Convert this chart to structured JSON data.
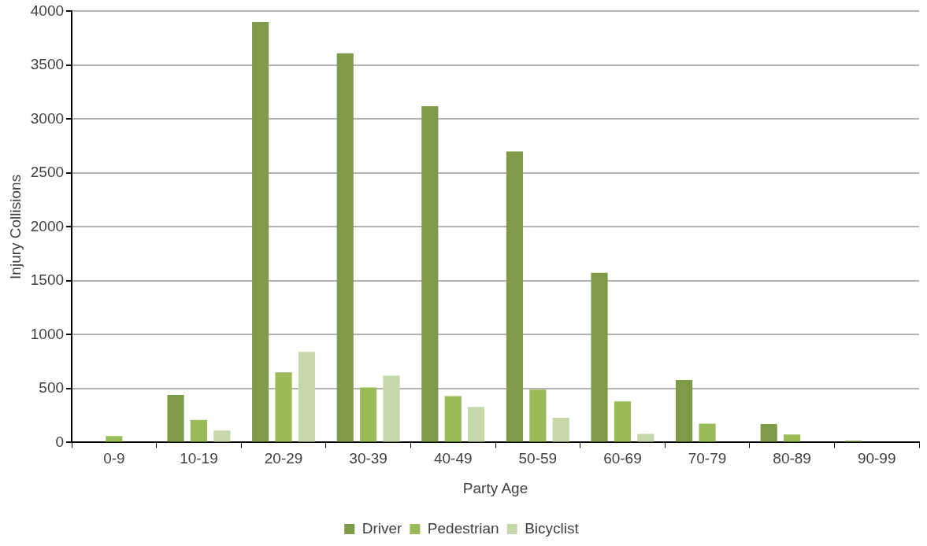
{
  "chart_data": {
    "type": "bar",
    "xlabel": "Party Age",
    "ylabel": "Injury Collisions",
    "categories": [
      "0-9",
      "10-19",
      "20-29",
      "30-39",
      "40-49",
      "50-59",
      "60-69",
      "70-79",
      "80-89",
      "90-99"
    ],
    "series": [
      {
        "name": "Driver",
        "color": "#7f9a48",
        "values": [
          0,
          440,
          3900,
          3610,
          3120,
          2700,
          1575,
          580,
          170,
          15
        ]
      },
      {
        "name": "Pedestrian",
        "color": "#9bbb59",
        "values": [
          60,
          210,
          650,
          510,
          430,
          490,
          380,
          175,
          75,
          null
        ]
      },
      {
        "name": "Bicyclist",
        "color": "#c6d7ac",
        "values": [
          null,
          110,
          840,
          620,
          330,
          230,
          80,
          null,
          0,
          0
        ]
      }
    ],
    "ylim": [
      0,
      4000
    ],
    "yticks": [
      0,
      500,
      1000,
      1500,
      2000,
      2500,
      3000,
      3500,
      4000
    ],
    "grid": "y",
    "legend": "bottom"
  }
}
